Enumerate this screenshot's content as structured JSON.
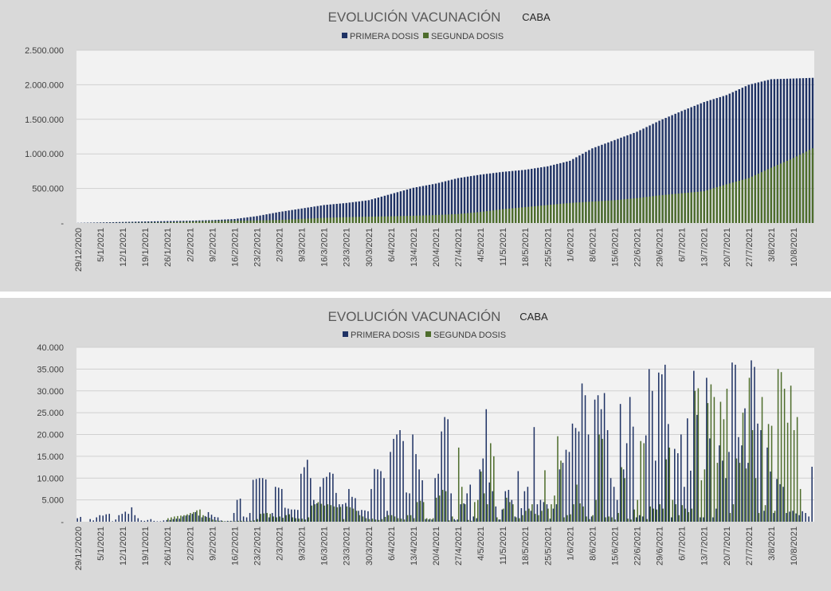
{
  "colors": {
    "primera": "#1f3264",
    "segunda": "#4e6d2c",
    "plot_bg": "#f2f2f2",
    "panel_bg": "#d9d9d9"
  },
  "x_tick_labels": [
    "29/12/2020",
    "5/1/2021",
    "12/1/2021",
    "19/1/2021",
    "26/1/2021",
    "2/2/2021",
    "9/2/2021",
    "16/2/2021",
    "23/2/2021",
    "2/3/2021",
    "9/3/2021",
    "16/3/2021",
    "23/3/2021",
    "30/3/2021",
    "6/4/2021",
    "13/4/2021",
    "20/4/2021",
    "27/4/2021",
    "4/5/2021",
    "11/5/2021",
    "18/5/2021",
    "25/5/2021",
    "1/6/2021",
    "8/6/2021",
    "15/6/2021",
    "22/6/2021",
    "29/6/2021",
    "6/7/2021",
    "13/7/2021",
    "20/7/2021",
    "27/7/2021",
    "3/8/2021",
    "10/8/2021"
  ],
  "chart_data": [
    {
      "type": "bar",
      "title": "EVOLUCIÓN VACUNACIÓN",
      "subtitle": "CABA",
      "legend_position": "top",
      "grid": true,
      "x_range": [
        "29/12/2020",
        "16/8/2021"
      ],
      "ylim": [
        0,
        2500000
      ],
      "y_ticks": [
        "-",
        "500.000",
        "1.000.000",
        "1.500.000",
        "2.000.000",
        "2.500.000"
      ],
      "weekly_cumulative": {
        "dates": [
          "29/12/2020",
          "5/1/2021",
          "12/1/2021",
          "19/1/2021",
          "26/1/2021",
          "2/2/2021",
          "9/2/2021",
          "16/2/2021",
          "23/2/2021",
          "2/3/2021",
          "9/3/2021",
          "16/3/2021",
          "23/3/2021",
          "30/3/2021",
          "6/4/2021",
          "13/4/2021",
          "20/4/2021",
          "27/4/2021",
          "4/5/2021",
          "11/5/2021",
          "18/5/2021",
          "25/5/2021",
          "1/6/2021",
          "8/6/2021",
          "15/6/2021",
          "22/6/2021",
          "29/6/2021",
          "6/7/2021",
          "13/7/2021",
          "20/7/2021",
          "27/7/2021",
          "3/8/2021",
          "10/8/2021",
          "16/8/2021"
        ],
        "series": [
          {
            "name": "PRIMERA DOSIS",
            "values": [
              2000,
              8000,
              15000,
              22000,
              28000,
              33000,
              42000,
              58000,
              100000,
              160000,
              210000,
              260000,
              290000,
              330000,
              420000,
              510000,
              570000,
              650000,
              700000,
              740000,
              770000,
              820000,
              900000,
              1080000,
              1200000,
              1320000,
              1480000,
              1620000,
              1750000,
              1850000,
              2000000,
              2080000,
              2090000,
              2100000
            ]
          },
          {
            "name": "SEGUNDA DOSIS",
            "values": [
              0,
              1000,
              3000,
              6000,
              10000,
              20000,
              30000,
              33000,
              38000,
              45000,
              60000,
              75000,
              85000,
              92000,
              97000,
              105000,
              115000,
              130000,
              160000,
              200000,
              230000,
              260000,
              290000,
              310000,
              330000,
              360000,
              400000,
              430000,
              460000,
              560000,
              650000,
              800000,
              940000,
              1080000
            ]
          }
        ]
      }
    },
    {
      "type": "bar",
      "title": "EVOLUCIÓN VACUNACIÓN",
      "subtitle": "CABA",
      "legend_position": "top",
      "grid": true,
      "x_range": [
        "29/12/2020",
        "16/8/2021"
      ],
      "ylim": [
        0,
        40000
      ],
      "y_ticks": [
        "-",
        "5.000",
        "10.000",
        "15.000",
        "20.000",
        "25.000",
        "30.000",
        "35.000",
        "40.000"
      ],
      "daily": {
        "start_date": "29/12/2020",
        "series": [
          {
            "name": "PRIMERA DOSIS",
            "values": [
              800,
              1100,
              0,
              0,
              600,
              300,
              1000,
              1500,
              1400,
              1700,
              1800,
              100,
              500,
              1500,
              1800,
              2300,
              1800,
              3300,
              1500,
              800,
              300,
              200,
              400,
              600,
              200,
              100,
              100,
              300,
              400,
              400,
              600,
              700,
              700,
              1200,
              1400,
              1500,
              1800,
              2200,
              1400,
              1000,
              1300,
              2200,
              1600,
              1100,
              1000,
              300,
              100,
              200,
              200,
              2000,
              5000,
              5300,
              1200,
              1000,
              2000,
              9600,
              9800,
              10000,
              10000,
              9700,
              1000,
              2000,
              8000,
              7800,
              7500,
              3200,
              3000,
              2800,
              2800,
              2700,
              11000,
              12500,
              14200,
              10000,
              5000,
              4200,
              8000,
              10000,
              10300,
              11300,
              11000,
              6600,
              4000,
              4000,
              4300,
              7500,
              5700,
              5400,
              2500,
              2700,
              2600,
              2400,
              7500,
              12100,
              12000,
              11600,
              10000,
              2500,
              16000,
              19000,
              20000,
              21000,
              18500,
              6700,
              6500,
              20000,
              15500,
              12000,
              9500,
              600,
              500,
              500,
              10000,
              11000,
              20700,
              24000,
              23500,
              6500,
              600,
              500,
              4000,
              4200,
              6500,
              8500,
              1200,
              800,
              12000,
              14500,
              25800,
              9000,
              7000,
              3500,
              500,
              2800,
              7000,
              7300,
              5000,
              1200,
              11600,
              3100,
              7000,
              8000,
              2500,
              21700,
              4000,
              5000,
              4500,
              4000,
              700,
              3000,
              4000,
              12000,
              13500,
              16500,
              16000,
              22500,
              21500,
              20700,
              31700,
              29000,
              20000,
              1200,
              28000,
              29000,
              25800,
              29500,
              21000,
              10000,
              8000,
              5000,
              27000,
              12000,
              18000,
              28600,
              21800,
              1000,
              1500,
              1200,
              19800,
              35000,
              30000,
              14000,
              34200,
              33800,
              36000,
              22400,
              1000,
              16700,
              15700,
              20000,
              8000,
              23700,
              11700,
              34600,
              24500,
              1000,
              1000,
              33000,
              19100,
              1000,
              3000,
              17500,
              14000,
              10000,
              16000,
              36500,
              36000,
              19400,
              17500,
              26000,
              13500,
              37000,
              35500,
              22500,
              21000,
              2500,
              17000,
              11500,
              2000,
              9800,
              8600,
              8000,
              2000,
              2300,
              2500,
              1900,
              1500,
              2400,
              2000,
              1200,
              12600
            ]
          },
          {
            "name": "SEGUNDA DOSIS",
            "values": [
              0,
              0,
              0,
              0,
              0,
              0,
              0,
              0,
              0,
              0,
              0,
              0,
              0,
              0,
              0,
              0,
              0,
              0,
              0,
              0,
              0,
              0,
              0,
              0,
              0,
              0,
              0,
              0,
              800,
              1000,
              1200,
              1300,
              1400,
              1500,
              1700,
              2000,
              2200,
              2600,
              2800,
              1500,
              1100,
              900,
              500,
              300,
              200,
              200,
              100,
              100,
              100,
              100,
              200,
              200,
              100,
              100,
              200,
              300,
              600,
              1800,
              1900,
              2000,
              1800,
              1200,
              1000,
              1200,
              900,
              1500,
              1700,
              1000,
              800,
              700,
              700,
              500,
              1000,
              3700,
              4000,
              4500,
              4100,
              3700,
              4000,
              3800,
              3500,
              3300,
              3400,
              600,
              3500,
              3300,
              3000,
              2500,
              1500,
              1200,
              800,
              600,
              700,
              500,
              400,
              600,
              1100,
              1500,
              1500,
              1200,
              800,
              700,
              500,
              1500,
              1500,
              800,
              4500,
              4800,
              4500,
              800,
              700,
              800,
              5500,
              6000,
              7300,
              7000,
              300,
              1200,
              300,
              17000,
              8000,
              4000,
              400,
              200,
              4500,
              5000,
              11500,
              6500,
              4000,
              18000,
              15000,
              1000,
              500,
              3000,
              5500,
              4500,
              4000,
              1000,
              800,
              1500,
              2500,
              3000,
              4000,
              1800,
              1500,
              2500,
              11800,
              3000,
              4000,
              6000,
              19600,
              14000,
              1000,
              1500,
              1700,
              4000,
              8500,
              4200,
              3500,
              1200,
              600,
              1500,
              5000,
              20000,
              19000,
              1000,
              1200,
              1000,
              500,
              2000,
              12500,
              10000,
              700,
              500,
              2800,
              5000,
              18500,
              18000,
              600,
              3500,
              3000,
              2800,
              4000,
              3000,
              14300,
              17000,
              5000,
              4000,
              1500,
              3800,
              3000,
              2200,
              3000,
              30000,
              30600,
              9500,
              12000,
              27200,
              31500,
              28600,
              13500,
              27500,
              23500,
              30500,
              2000,
              4000,
              14500,
              13500,
              25000,
              12200,
              33000,
              21000,
              10000,
              2000,
              28600,
              3800,
              22400,
              22000,
              2500,
              35000,
              34300,
              30500,
              22700,
              31200,
              21000,
              24000,
              7500
            ]
          }
        ]
      }
    }
  ]
}
